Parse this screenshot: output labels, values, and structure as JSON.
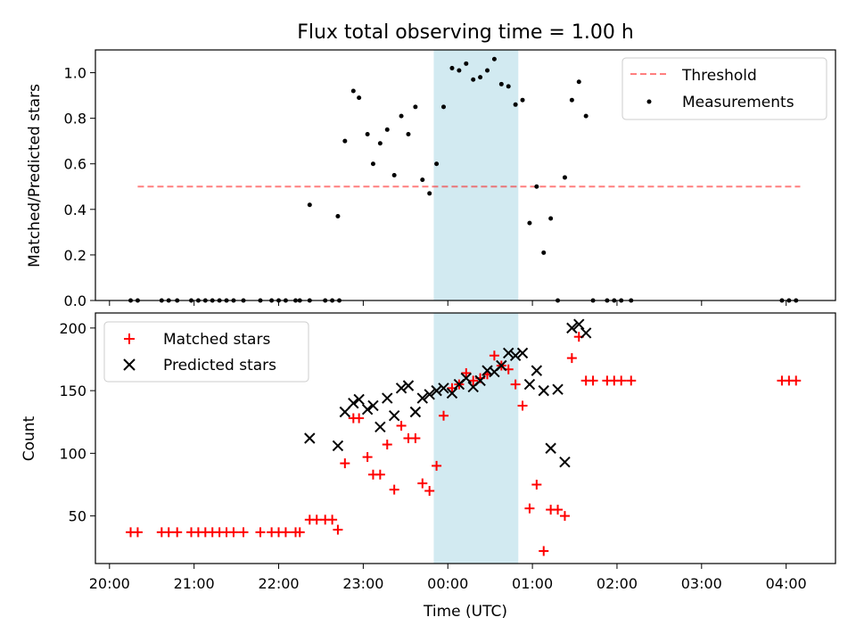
{
  "title": "Flux total observing time = 1.00 h",
  "xlabel": "Time (UTC)",
  "x_ticks": [
    "20:00",
    "21:00",
    "22:00",
    "23:00",
    "00:00",
    "01:00",
    "02:00",
    "03:00",
    "04:00"
  ],
  "highlight": {
    "start": "23:50",
    "end": "00:50",
    "color": "#add8e6"
  },
  "chart_data": [
    {
      "type": "scatter",
      "ylabel": "Matched/Predicted stars",
      "ylim": [
        0,
        1.1
      ],
      "y_ticks": [
        "0.0",
        "0.2",
        "0.4",
        "0.6",
        "0.8",
        "1.0"
      ],
      "legend": {
        "placement": "top-right",
        "entries": [
          "Threshold",
          "Measurements"
        ]
      },
      "threshold": {
        "name": "Threshold",
        "value": 0.5,
        "x_range": [
          "20:20",
          "04:10"
        ],
        "color": "#ff0000",
        "style": "dashed"
      },
      "series": [
        {
          "name": "Measurements",
          "color": "#000000",
          "marker": "dot",
          "points": [
            [
              "20:15",
              0
            ],
            [
              "20:20",
              0
            ],
            [
              "20:37",
              0
            ],
            [
              "20:42",
              0
            ],
            [
              "20:48",
              0
            ],
            [
              "20:58",
              0
            ],
            [
              "21:03",
              0
            ],
            [
              "21:08",
              0
            ],
            [
              "21:13",
              0
            ],
            [
              "21:18",
              0
            ],
            [
              "21:23",
              0
            ],
            [
              "21:28",
              0
            ],
            [
              "21:35",
              0
            ],
            [
              "21:47",
              0
            ],
            [
              "21:55",
              0
            ],
            [
              "22:00",
              0
            ],
            [
              "22:05",
              0
            ],
            [
              "22:12",
              0
            ],
            [
              "22:15",
              0
            ],
            [
              "22:22",
              0
            ],
            [
              "22:33",
              0
            ],
            [
              "22:38",
              0
            ],
            [
              "22:43",
              0
            ],
            [
              "22:22",
              0.42
            ],
            [
              "22:42",
              0.37
            ],
            [
              "22:47",
              0.7
            ],
            [
              "22:53",
              0.92
            ],
            [
              "22:57",
              0.89
            ],
            [
              "23:03",
              0.73
            ],
            [
              "23:07",
              0.6
            ],
            [
              "23:12",
              0.69
            ],
            [
              "23:17",
              0.75
            ],
            [
              "23:22",
              0.55
            ],
            [
              "23:27",
              0.81
            ],
            [
              "23:32",
              0.73
            ],
            [
              "23:37",
              0.85
            ],
            [
              "23:42",
              0.53
            ],
            [
              "23:47",
              0.47
            ],
            [
              "23:52",
              0.6
            ],
            [
              "23:57",
              0.85
            ],
            [
              "00:03",
              1.02
            ],
            [
              "00:08",
              1.01
            ],
            [
              "00:13",
              1.04
            ],
            [
              "00:18",
              0.97
            ],
            [
              "00:23",
              0.98
            ],
            [
              "00:28",
              1.01
            ],
            [
              "00:33",
              1.06
            ],
            [
              "00:38",
              0.95
            ],
            [
              "00:43",
              0.94
            ],
            [
              "00:48",
              0.86
            ],
            [
              "00:53",
              0.88
            ],
            [
              "00:58",
              0.34
            ],
            [
              "01:03",
              0.5
            ],
            [
              "01:08",
              0.21
            ],
            [
              "01:13",
              0.36
            ],
            [
              "01:18",
              0
            ],
            [
              "01:23",
              0.54
            ],
            [
              "01:28",
              0.88
            ],
            [
              "01:33",
              0.96
            ],
            [
              "01:38",
              0.81
            ],
            [
              "01:43",
              0
            ],
            [
              "01:53",
              0
            ],
            [
              "01:58",
              0
            ],
            [
              "02:03",
              0
            ],
            [
              "02:10",
              0
            ],
            [
              "03:57",
              0
            ],
            [
              "04:02",
              0
            ],
            [
              "04:07",
              0
            ]
          ]
        }
      ]
    },
    {
      "type": "scatter",
      "ylabel": "Count",
      "ylim": [
        12,
        212
      ],
      "y_ticks": [
        "50",
        "100",
        "150",
        "200"
      ],
      "legend": {
        "placement": "top-left",
        "entries": [
          "Matched stars",
          "Predicted stars"
        ]
      },
      "series": [
        {
          "name": "Matched stars",
          "color": "#ff0000",
          "marker": "plus",
          "points": [
            [
              "20:15",
              37
            ],
            [
              "20:20",
              37
            ],
            [
              "20:37",
              37
            ],
            [
              "20:42",
              37
            ],
            [
              "20:48",
              37
            ],
            [
              "20:58",
              37
            ],
            [
              "21:03",
              37
            ],
            [
              "21:08",
              37
            ],
            [
              "21:13",
              37
            ],
            [
              "21:18",
              37
            ],
            [
              "21:23",
              37
            ],
            [
              "21:28",
              37
            ],
            [
              "21:35",
              37
            ],
            [
              "21:47",
              37
            ],
            [
              "21:55",
              37
            ],
            [
              "22:00",
              37
            ],
            [
              "22:05",
              37
            ],
            [
              "22:12",
              37
            ],
            [
              "22:15",
              37
            ],
            [
              "22:22",
              47
            ],
            [
              "22:27",
              47
            ],
            [
              "22:33",
              47
            ],
            [
              "22:38",
              47
            ],
            [
              "22:42",
              39
            ],
            [
              "22:47",
              92
            ],
            [
              "22:53",
              128
            ],
            [
              "22:57",
              128
            ],
            [
              "23:03",
              97
            ],
            [
              "23:07",
              83
            ],
            [
              "23:12",
              83
            ],
            [
              "23:17",
              107
            ],
            [
              "23:22",
              71
            ],
            [
              "23:27",
              122
            ],
            [
              "23:32",
              112
            ],
            [
              "23:37",
              112
            ],
            [
              "23:42",
              76
            ],
            [
              "23:47",
              70
            ],
            [
              "23:52",
              90
            ],
            [
              "23:57",
              130
            ],
            [
              "00:03",
              152
            ],
            [
              "00:08",
              155
            ],
            [
              "00:13",
              164
            ],
            [
              "00:18",
              158
            ],
            [
              "00:23",
              160
            ],
            [
              "00:28",
              163
            ],
            [
              "00:33",
              178
            ],
            [
              "00:38",
              170
            ],
            [
              "00:43",
              167
            ],
            [
              "00:48",
              155
            ],
            [
              "00:53",
              138
            ],
            [
              "00:58",
              56
            ],
            [
              "01:03",
              75
            ],
            [
              "01:08",
              22
            ],
            [
              "01:13",
              55
            ],
            [
              "01:18",
              55
            ],
            [
              "01:23",
              50
            ],
            [
              "01:28",
              176
            ],
            [
              "01:33",
              193
            ],
            [
              "01:38",
              158
            ],
            [
              "01:43",
              158
            ],
            [
              "01:53",
              158
            ],
            [
              "01:58",
              158
            ],
            [
              "02:03",
              158
            ],
            [
              "02:10",
              158
            ],
            [
              "03:57",
              158
            ],
            [
              "04:02",
              158
            ],
            [
              "04:07",
              158
            ]
          ]
        },
        {
          "name": "Predicted stars",
          "color": "#000000",
          "marker": "x",
          "points": [
            [
              "22:22",
              112
            ],
            [
              "22:42",
              106
            ],
            [
              "22:47",
              133
            ],
            [
              "22:53",
              140
            ],
            [
              "22:57",
              143
            ],
            [
              "23:03",
              135
            ],
            [
              "23:07",
              138
            ],
            [
              "23:12",
              121
            ],
            [
              "23:17",
              144
            ],
            [
              "23:22",
              130
            ],
            [
              "23:27",
              152
            ],
            [
              "23:32",
              154
            ],
            [
              "23:37",
              133
            ],
            [
              "23:42",
              144
            ],
            [
              "23:47",
              147
            ],
            [
              "23:52",
              150
            ],
            [
              "23:57",
              152
            ],
            [
              "00:03",
              148
            ],
            [
              "00:08",
              155
            ],
            [
              "00:13",
              160
            ],
            [
              "00:18",
              153
            ],
            [
              "00:23",
              158
            ],
            [
              "00:28",
              166
            ],
            [
              "00:33",
              165
            ],
            [
              "00:38",
              170
            ],
            [
              "00:43",
              180
            ],
            [
              "00:48",
              178
            ],
            [
              "00:53",
              180
            ],
            [
              "00:58",
              155
            ],
            [
              "01:03",
              166
            ],
            [
              "01:08",
              150
            ],
            [
              "01:13",
              104
            ],
            [
              "01:18",
              151
            ],
            [
              "01:23",
              93
            ],
            [
              "01:28",
              200
            ],
            [
              "01:33",
              203
            ],
            [
              "01:38",
              196
            ]
          ]
        }
      ]
    }
  ]
}
